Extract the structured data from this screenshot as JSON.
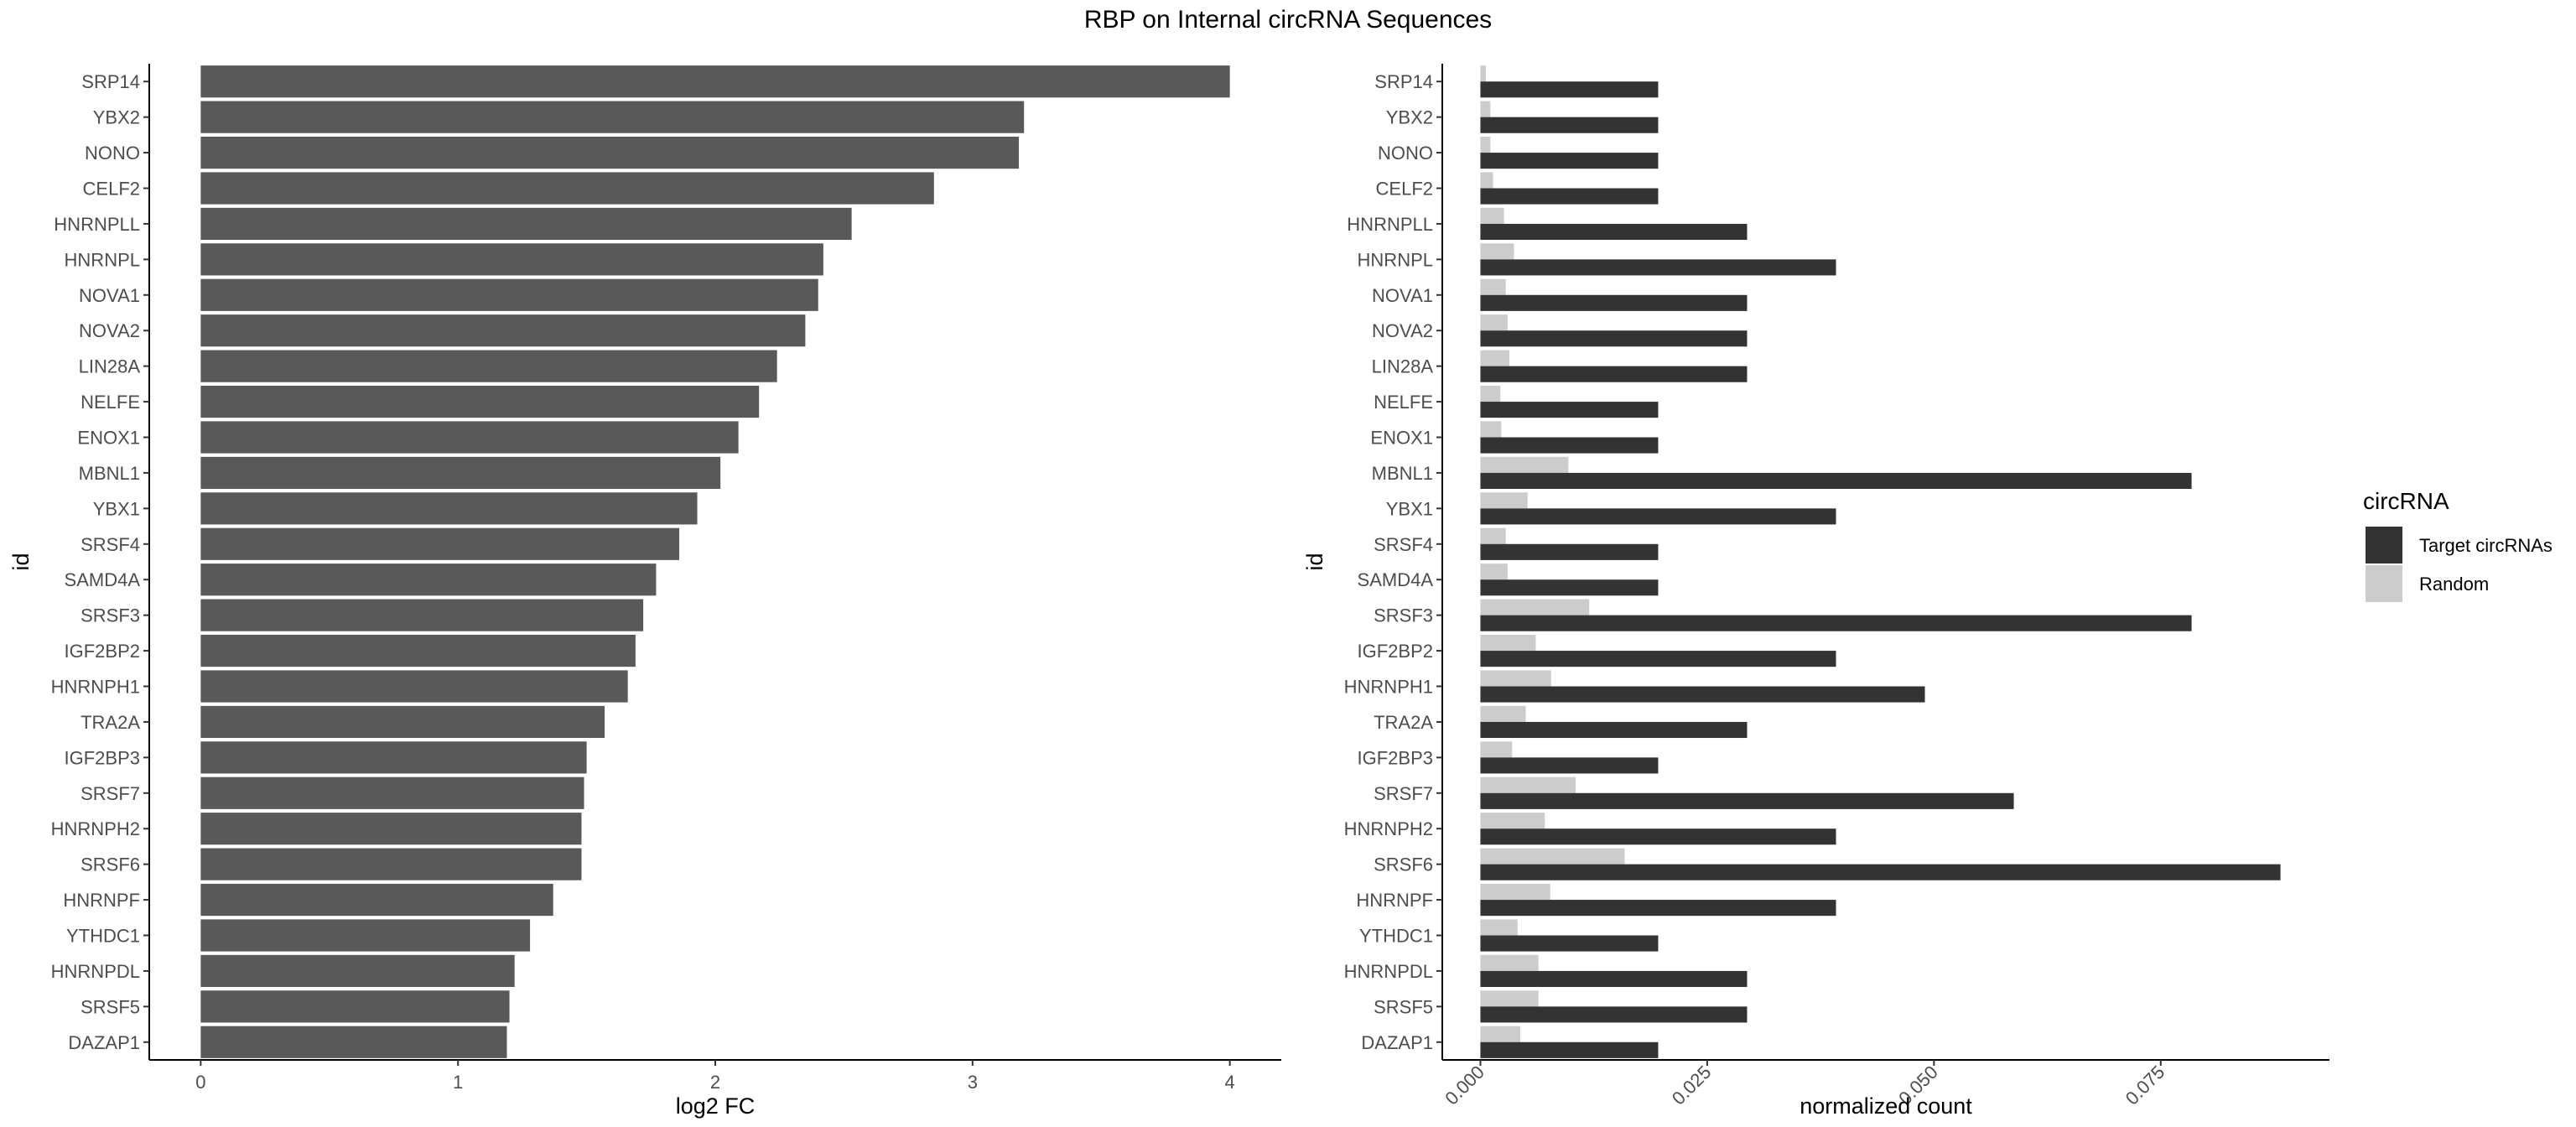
{
  "title": "RBP on Internal circRNA Sequences",
  "chart_data": [
    {
      "type": "bar",
      "orientation": "horizontal",
      "xlabel": "log2 FC",
      "ylabel": "id",
      "xlim": [
        -0.2,
        4.2
      ],
      "xticks": [
        0,
        1,
        2,
        3,
        4
      ],
      "bar_color": "#595959",
      "categories": [
        "SRP14",
        "YBX2",
        "NONO",
        "CELF2",
        "HNRNPLL",
        "HNRNPL",
        "NOVA1",
        "NOVA2",
        "LIN28A",
        "NELFE",
        "ENOX1",
        "MBNL1",
        "YBX1",
        "SRSF4",
        "SAMD4A",
        "SRSF3",
        "IGF2BP2",
        "HNRNPH1",
        "TRA2A",
        "IGF2BP3",
        "SRSF7",
        "HNRNPH2",
        "SRSF6",
        "HNRNPF",
        "YTHDC1",
        "HNRNPDL",
        "SRSF5",
        "DAZAP1"
      ],
      "values": [
        4.0,
        3.2,
        3.18,
        2.85,
        2.53,
        2.42,
        2.4,
        2.35,
        2.24,
        2.17,
        2.09,
        2.02,
        1.93,
        1.86,
        1.77,
        1.72,
        1.69,
        1.66,
        1.57,
        1.5,
        1.49,
        1.48,
        1.48,
        1.37,
        1.28,
        1.22,
        1.2,
        1.19
      ]
    },
    {
      "type": "bar",
      "orientation": "horizontal",
      "xlabel": "normalized count",
      "ylabel": "id",
      "xlim": [
        -0.0042,
        0.0936
      ],
      "xticks": [
        "0.000",
        "0.025",
        "0.050",
        "0.075"
      ],
      "xtick_values": [
        0,
        0.025,
        0.05,
        0.075
      ],
      "legend": {
        "title": "circRNA",
        "position": "right"
      },
      "categories": [
        "SRP14",
        "YBX2",
        "NONO",
        "CELF2",
        "HNRNPLL",
        "HNRNPL",
        "NOVA1",
        "NOVA2",
        "LIN28A",
        "NELFE",
        "ENOX1",
        "MBNL1",
        "YBX1",
        "SRSF4",
        "SAMD4A",
        "SRSF3",
        "IGF2BP2",
        "HNRNPH1",
        "TRA2A",
        "IGF2BP3",
        "SRSF7",
        "HNRNPH2",
        "SRSF6",
        "HNRNPF",
        "YTHDC1",
        "HNRNPDL",
        "SRSF5",
        "DAZAP1"
      ],
      "series": [
        {
          "name": "Target circRNAs",
          "color": "#333333",
          "values": [
            0.0196,
            0.0196,
            0.0196,
            0.0196,
            0.0294,
            0.0392,
            0.0294,
            0.0294,
            0.0294,
            0.0196,
            0.0196,
            0.0784,
            0.0392,
            0.0196,
            0.0196,
            0.0784,
            0.0392,
            0.049,
            0.0294,
            0.0196,
            0.0588,
            0.0392,
            0.0882,
            0.0392,
            0.0196,
            0.0294,
            0.0294,
            0.0196
          ]
        },
        {
          "name": "Random",
          "color": "#cccccc",
          "values": [
            0.0006,
            0.0011,
            0.0011,
            0.0014,
            0.0026,
            0.0037,
            0.0028,
            0.003,
            0.0032,
            0.0022,
            0.0023,
            0.0097,
            0.0052,
            0.0028,
            0.003,
            0.012,
            0.0061,
            0.0078,
            0.005,
            0.0035,
            0.0105,
            0.0071,
            0.0159,
            0.0077,
            0.0041,
            0.0064,
            0.0064,
            0.0044
          ]
        }
      ]
    }
  ]
}
